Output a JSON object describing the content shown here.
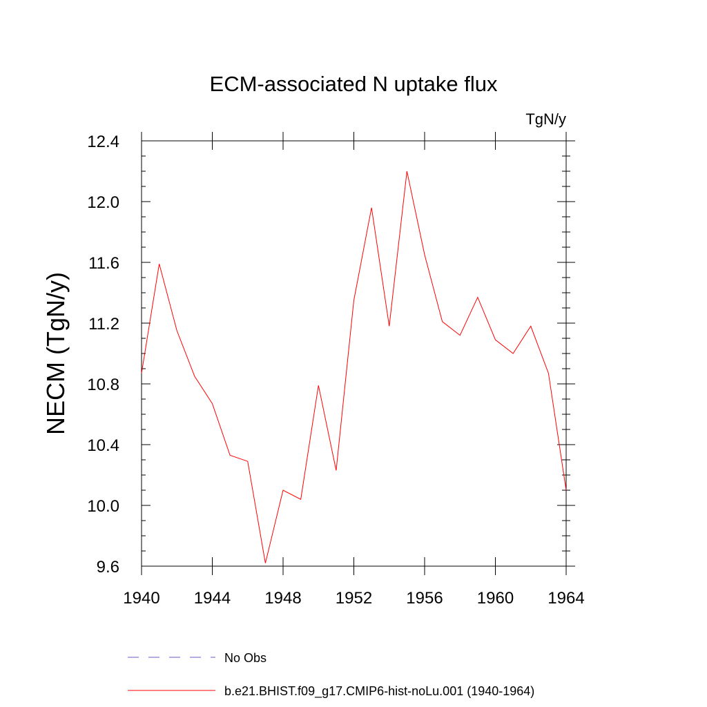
{
  "chart_data": {
    "type": "line",
    "title": "ECM-associated N uptake flux",
    "units": "TgN/y",
    "ylabel": "NECM  (TgN/y)",
    "xlabel": "",
    "xlim": [
      1940,
      1964
    ],
    "ylim": [
      9.6,
      12.4
    ],
    "x_ticks": [
      1940,
      1944,
      1948,
      1952,
      1956,
      1960,
      1964
    ],
    "x_tick_labels": [
      "1940",
      "1944",
      "1948",
      "1952",
      "1956",
      "1960",
      "1964"
    ],
    "y_ticks": [
      9.6,
      10.0,
      10.4,
      10.8,
      11.2,
      11.6,
      12.0,
      12.4
    ],
    "y_tick_labels": [
      "9.6",
      "10.0",
      "10.4",
      "10.8",
      "11.2",
      "11.6",
      "12.0",
      "12.4"
    ],
    "grid": false,
    "legend_position": "bottom",
    "series": [
      {
        "name": "b.e21.BHIST.f09_g17.CMIP6-hist-noLu.001 (1940-1964)",
        "color": "#ff0000",
        "style": "solid",
        "x": [
          1940,
          1941,
          1942,
          1943,
          1944,
          1945,
          1946,
          1947,
          1948,
          1949,
          1950,
          1951,
          1952,
          1953,
          1954,
          1955,
          1956,
          1957,
          1958,
          1959,
          1960,
          1961,
          1962,
          1963,
          1964
        ],
        "values": [
          10.87,
          11.59,
          11.15,
          10.85,
          10.67,
          10.33,
          10.29,
          9.62,
          10.1,
          10.04,
          10.79,
          10.23,
          11.35,
          11.96,
          11.18,
          12.2,
          11.65,
          11.21,
          11.12,
          11.37,
          11.09,
          11.0,
          11.18,
          10.87,
          10.1
        ]
      }
    ],
    "legend": [
      {
        "label": "No Obs",
        "color": "#6a5acd",
        "style": "dashed"
      },
      {
        "label": "b.e21.BHIST.f09_g17.CMIP6-hist-noLu.001 (1940-1964)",
        "color": "#ff0000",
        "style": "solid"
      }
    ]
  }
}
